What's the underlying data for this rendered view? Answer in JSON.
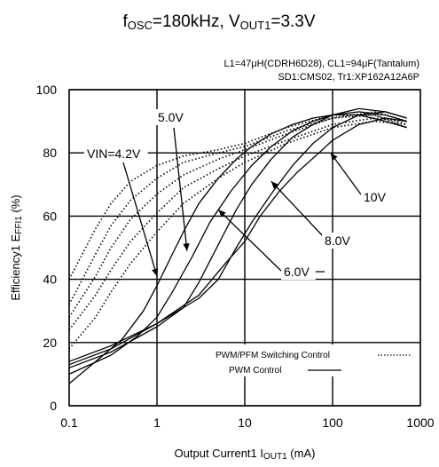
{
  "chart_data": {
    "type": "line",
    "title": "fOSC=180kHz, VOUT1=3.3V",
    "title_parts": {
      "f": "f",
      "osc": "OSC",
      "mid": "=180kHz, V",
      "out1": "OUT1",
      "tail": "=3.3V"
    },
    "conditions": [
      "L1=47μH(CDRH6D28), CL1=94μF(Tantalum)",
      "SD1:CMS02, Tr1:XP162A12A6P"
    ],
    "xlabel": "Output Current1 IOUT1 (mA)",
    "xlabel_parts": {
      "pre": "Output Current1  I",
      "sub": "OUT1",
      "post": " (mA)"
    },
    "ylabel": "Efficiency1 EFFI1 (%)",
    "ylabel_parts": {
      "pre": "Efficiency1 E",
      "sub": "FFI1",
      "post": "  (%)"
    },
    "x_scale": "log",
    "xlim": [
      0.1,
      1000
    ],
    "ylim": [
      0,
      100
    ],
    "x_ticks": [
      0.1,
      1,
      10,
      100,
      1000
    ],
    "x_tick_labels": [
      "0.1",
      "1",
      "10",
      "100",
      "1000"
    ],
    "y_ticks": [
      0,
      20,
      40,
      60,
      80,
      100
    ],
    "y_tick_labels": [
      "0",
      "20",
      "40",
      "60",
      "80",
      "100"
    ],
    "grid": "major",
    "legend_placement": "bottom-right",
    "legend": [
      {
        "label": "PWM/PFM Switching Control",
        "style": "dotted"
      },
      {
        "label": "PWM  Control",
        "style": "solid"
      }
    ],
    "series": [
      {
        "control": "PWM",
        "vin": "4.2V",
        "style": "solid",
        "x": [
          0.1,
          0.2,
          0.4,
          0.7,
          1,
          1.5,
          2,
          3,
          5,
          8,
          12,
          20,
          35,
          60,
          100,
          200,
          400,
          700
        ],
        "y": [
          7,
          14,
          21,
          30,
          38,
          48,
          55,
          64,
          72,
          78,
          82,
          86,
          89,
          91,
          92,
          92,
          90,
          88
        ]
      },
      {
        "control": "PWM",
        "vin": "5.0V",
        "style": "solid",
        "x": [
          0.1,
          0.3,
          0.6,
          1,
          1.5,
          2.5,
          4,
          7,
          12,
          20,
          35,
          60,
          100,
          200,
          400,
          700
        ],
        "y": [
          10,
          16,
          22,
          28,
          36,
          47,
          58,
          68,
          76,
          82,
          87,
          90,
          92,
          93,
          92,
          90
        ]
      },
      {
        "control": "PWM",
        "vin": "6.0V",
        "style": "solid",
        "x": [
          0.1,
          0.3,
          1,
          2,
          3,
          5,
          8,
          12,
          20,
          35,
          60,
          100,
          200,
          400,
          700
        ],
        "y": [
          12,
          17,
          25,
          31,
          39,
          51,
          62,
          70,
          78,
          85,
          89,
          92,
          94,
          93,
          91
        ]
      },
      {
        "control": "PWM",
        "vin": "8.0V",
        "style": "solid",
        "x": [
          0.1,
          0.3,
          1,
          3,
          5,
          8,
          12,
          20,
          35,
          60,
          100,
          200,
          400,
          700
        ],
        "y": [
          13,
          18,
          26,
          34,
          40,
          50,
          58,
          67,
          76,
          83,
          88,
          92,
          93,
          91
        ]
      },
      {
        "control": "PWM",
        "vin": "10V",
        "style": "solid",
        "x": [
          0.1,
          0.3,
          1,
          3,
          6,
          10,
          15,
          25,
          40,
          70,
          100,
          200,
          400,
          700
        ],
        "y": [
          14,
          19,
          26,
          35,
          45,
          52,
          60,
          68,
          74,
          80,
          84,
          89,
          91,
          90
        ]
      },
      {
        "control": "PWM/PFM",
        "vin": "4.2V",
        "style": "dotted",
        "x": [
          0.1,
          0.2,
          0.3,
          0.5,
          1,
          2,
          5,
          10,
          30,
          100,
          300,
          700
        ],
        "y": [
          40,
          56,
          64,
          71,
          76,
          79,
          81,
          83,
          88,
          92,
          92,
          88
        ]
      },
      {
        "control": "PWM/PFM",
        "vin": "5.0V",
        "style": "dotted",
        "x": [
          0.1,
          0.2,
          0.3,
          0.5,
          1,
          2,
          5,
          10,
          30,
          100,
          300,
          700
        ],
        "y": [
          32,
          48,
          57,
          65,
          72,
          77,
          80,
          82,
          87,
          91,
          92,
          89
        ]
      },
      {
        "control": "PWM/PFM",
        "vin": "6.0V",
        "style": "dotted",
        "x": [
          0.1,
          0.2,
          0.3,
          0.5,
          1,
          2,
          5,
          10,
          30,
          100,
          300,
          700
        ],
        "y": [
          28,
          41,
          50,
          59,
          67,
          73,
          78,
          81,
          86,
          91,
          93,
          90
        ]
      },
      {
        "control": "PWM/PFM",
        "vin": "8.0V",
        "style": "dotted",
        "x": [
          0.1,
          0.2,
          0.3,
          0.5,
          1,
          2,
          5,
          10,
          30,
          100,
          300,
          700
        ],
        "y": [
          24,
          35,
          43,
          52,
          61,
          69,
          75,
          79,
          84,
          89,
          91,
          90
        ]
      },
      {
        "control": "PWM/PFM",
        "vin": "10V",
        "style": "dotted",
        "x": [
          0.1,
          0.2,
          0.3,
          0.5,
          1,
          2,
          5,
          10,
          30,
          100,
          300,
          700
        ],
        "y": [
          18,
          28,
          36,
          45,
          55,
          64,
          72,
          77,
          83,
          88,
          90,
          89
        ]
      }
    ],
    "annotations": [
      {
        "text": "VIN=4.2V",
        "x": 1,
        "y": 41
      },
      {
        "text": "5.0V",
        "x": 2.2,
        "y": 49
      },
      {
        "text": "6.0V",
        "x": 5,
        "y": 62
      },
      {
        "text": "8.0V",
        "x": 20,
        "y": 71
      },
      {
        "text": "10V",
        "x": 95,
        "y": 80
      }
    ]
  }
}
